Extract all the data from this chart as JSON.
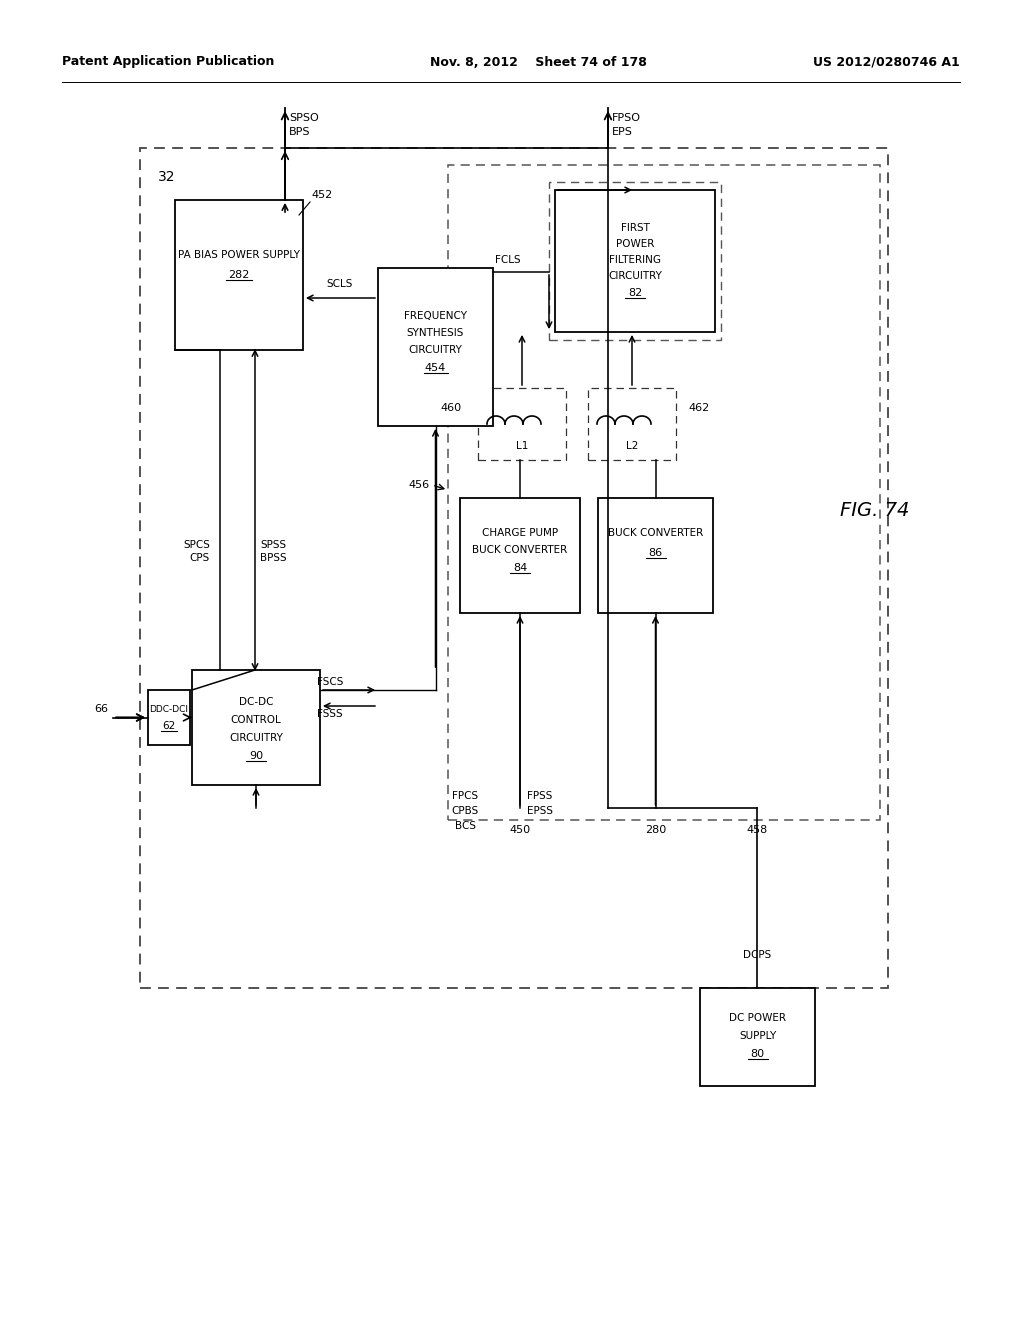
{
  "title": "FIG. 74",
  "header_left": "Patent Application Publication",
  "header_center": "Nov. 8, 2012    Sheet 74 of 178",
  "header_right": "US 2012/0280746 A1",
  "bg_color": "#ffffff"
}
